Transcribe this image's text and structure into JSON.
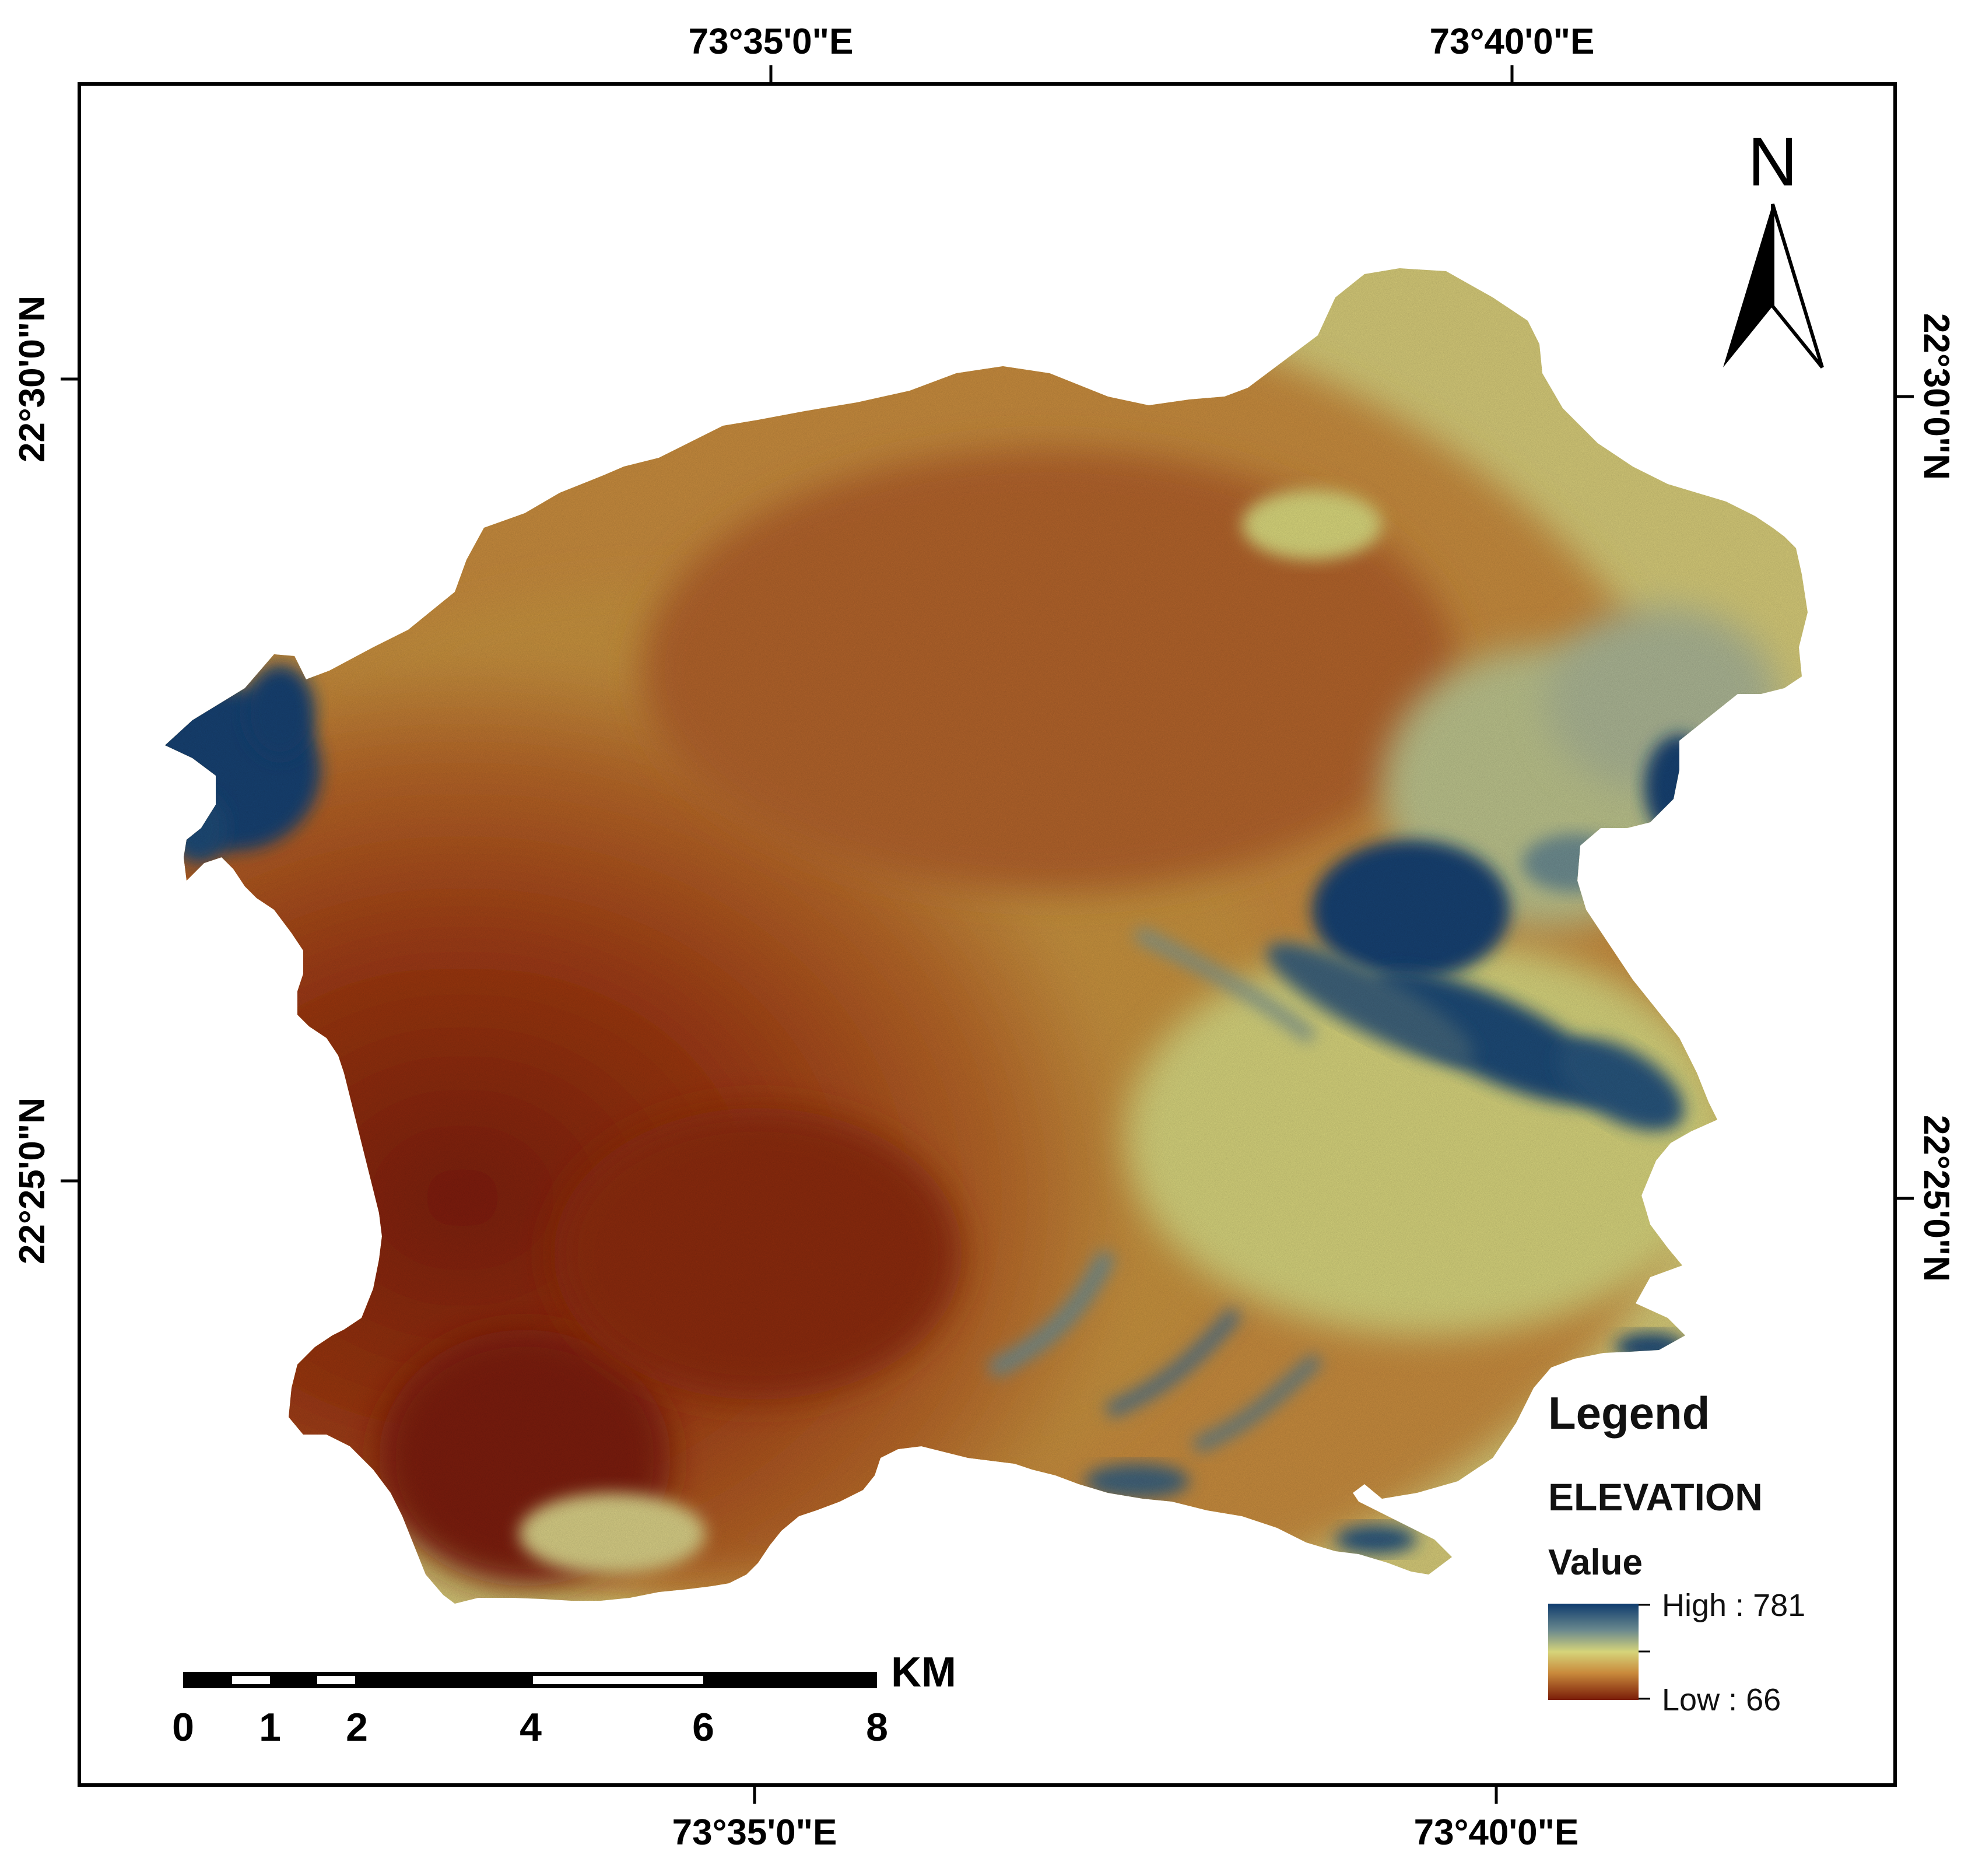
{
  "graticule": {
    "top_lon": [
      "73°35'0\"E",
      "73°40'0\"E"
    ],
    "bottom_lon": [
      "73°35'0\"E",
      "73°40'0\"E"
    ],
    "left_lat": [
      "22°30'0\"N",
      "22°25'0\"N"
    ],
    "right_lat": [
      "22°30'0\"N",
      "22°25'0\"N"
    ]
  },
  "north_arrow": {
    "label": "N",
    "icon": "north-arrow-icon"
  },
  "legend": {
    "title": "Legend",
    "layer": "ELEVATION",
    "field": "Value",
    "high_label": "High : 781",
    "low_label": "Low : 66",
    "high_value": 781,
    "low_value": 66,
    "ramp_colors": [
      "#0f3c6e",
      "#6c8a8e",
      "#d6d47a",
      "#c98a3c",
      "#7a1c08"
    ]
  },
  "scale_bar": {
    "ticks": [
      "0",
      "1",
      "2",
      "4",
      "6",
      "8"
    ],
    "unit": "KM"
  },
  "colors": {
    "lowland": "#8a2a0c",
    "mid": "#c0803a",
    "upland": "#d7d67c",
    "highland": "#123f70"
  }
}
